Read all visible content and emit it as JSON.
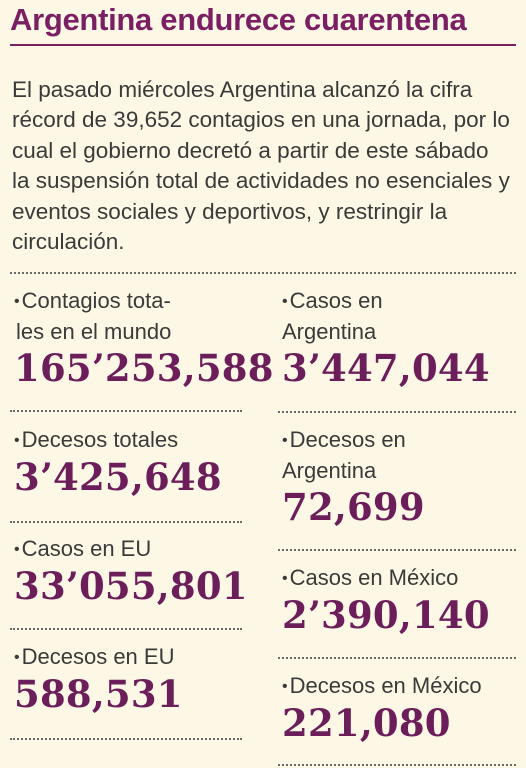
{
  "article": {
    "title": "Argentina endurece cuarentena",
    "intro": "El pasado miércoles Argentina alcanzó la cifra récord de 39,652 contagios en una jornada, por lo cual el gobierno decretó a partir de este sábado la suspensión total de actividades no esenciales y eventos sociales y deportivos, y restringir la circulación."
  },
  "stats": {
    "bullet": "•",
    "left": [
      {
        "label_line1": "Contagios tota-",
        "label_line2": "les en el mundo",
        "value": "165’253,588"
      },
      {
        "label_line1": "Decesos totales",
        "value": "3’425,648"
      },
      {
        "label_line1": "Casos en EU",
        "value": "33’055,801"
      },
      {
        "label_line1": "Decesos en EU",
        "value": "588,531"
      }
    ],
    "right": [
      {
        "label_line1": "Casos en",
        "label_line2": "Argentina",
        "value": "3’447,044"
      },
      {
        "label_line1": "Decesos en",
        "label_line2": "Argentina",
        "value": "72,699"
      },
      {
        "label_line1": "Casos en México",
        "value": "2’390,140"
      },
      {
        "label_line1": "Decesos en México",
        "value": "221,080"
      }
    ]
  },
  "colors": {
    "title": "#7b1f63",
    "figures": "#6b1e5a",
    "body_text": "#3a3a3a",
    "background": "#fdf8e6"
  }
}
